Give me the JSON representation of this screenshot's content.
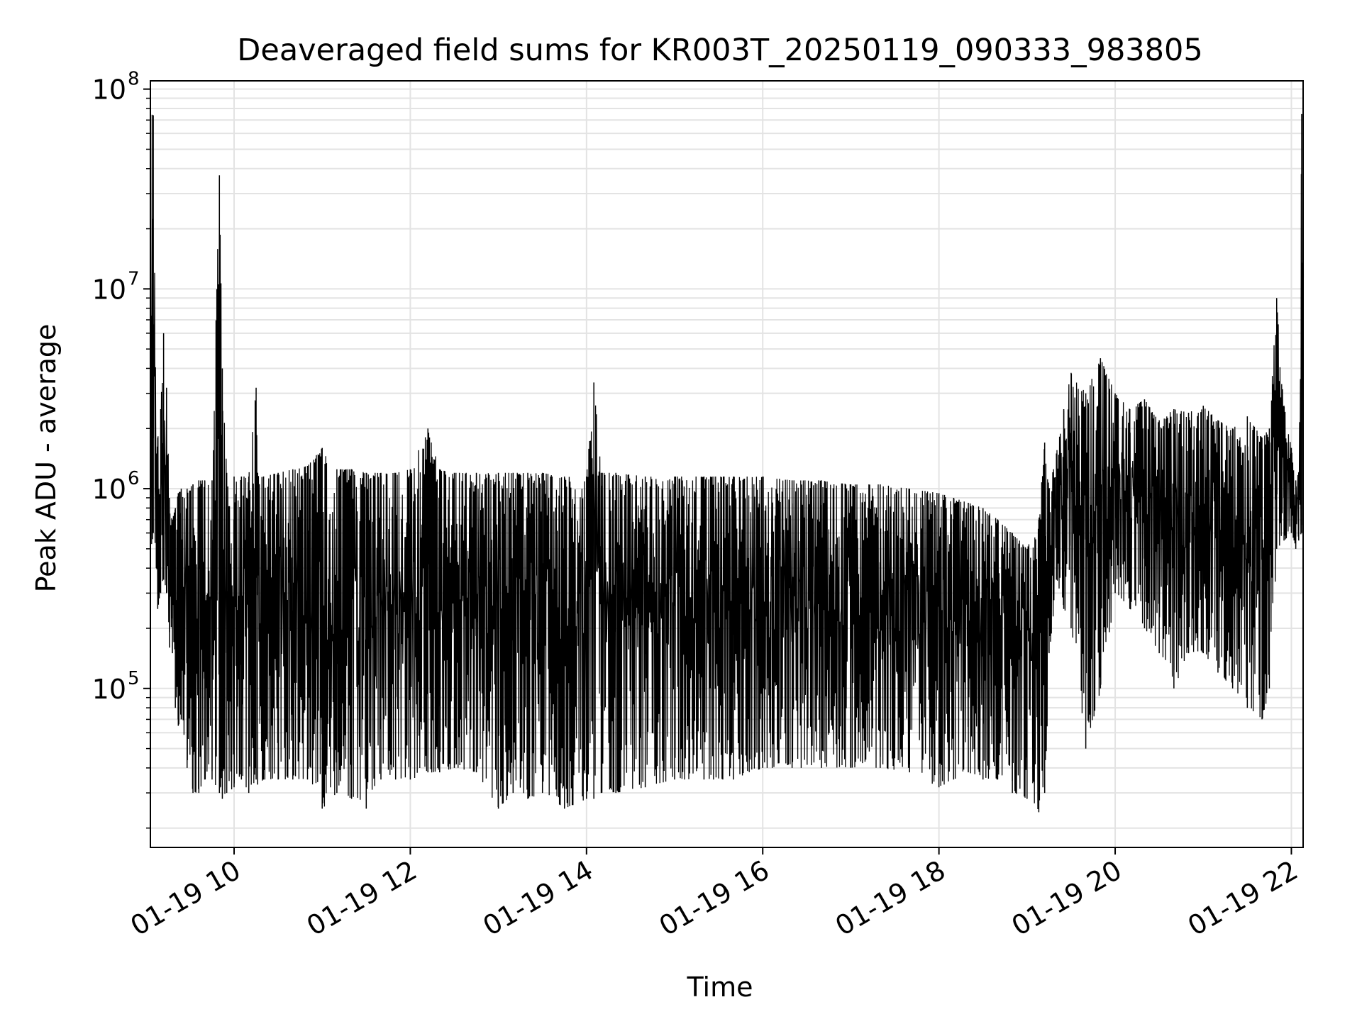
{
  "chart_data": {
    "type": "line",
    "title": "Deaveraged field sums for KR003T_20250119_090333_983805",
    "xlabel": "Time",
    "ylabel": "Peak ADU - average",
    "x_axis": {
      "kind": "datetime",
      "range": [
        "2025-01-19T09:03",
        "2025-01-19T22:08"
      ],
      "ticks": [
        {
          "value": "2025-01-19T10:00",
          "label": "01-19 10"
        },
        {
          "value": "2025-01-19T12:00",
          "label": "01-19 12"
        },
        {
          "value": "2025-01-19T14:00",
          "label": "01-19 14"
        },
        {
          "value": "2025-01-19T16:00",
          "label": "01-19 16"
        },
        {
          "value": "2025-01-19T18:00",
          "label": "01-19 18"
        },
        {
          "value": "2025-01-19T20:00",
          "label": "01-19 20"
        },
        {
          "value": "2025-01-19T22:00",
          "label": "01-19 22"
        }
      ]
    },
    "y_axis": {
      "scale": "log",
      "range": [
        16000,
        110000000
      ],
      "ticks": [
        {
          "value": 100000,
          "base": "10",
          "exp": "5"
        },
        {
          "value": 1000000,
          "base": "10",
          "exp": "6"
        },
        {
          "value": 10000000,
          "base": "10",
          "exp": "7"
        },
        {
          "value": 100000000,
          "base": "10",
          "exp": "8"
        }
      ]
    },
    "grid": true,
    "legend": "none",
    "line_color": "#000000",
    "series": [
      {
        "x": [
          "2025-01-19T09:03",
          "2025-01-19T09:05",
          "2025-01-19T09:07",
          "2025-01-19T09:08",
          "2025-01-19T09:10",
          "2025-01-19T09:12",
          "2025-01-19T09:14",
          "2025-01-19T09:16",
          "2025-01-19T09:18",
          "2025-01-19T09:20",
          "2025-01-19T09:22",
          "2025-01-19T09:24",
          "2025-01-19T09:28",
          "2025-01-19T09:32",
          "2025-01-19T09:36",
          "2025-01-19T09:40",
          "2025-01-19T09:45",
          "2025-01-19T09:50",
          "2025-01-19T09:52",
          "2025-01-19T09:55",
          "2025-01-19T10:00",
          "2025-01-19T10:05",
          "2025-01-19T10:10",
          "2025-01-19T10:15",
          "2025-01-19T10:16",
          "2025-01-19T10:20",
          "2025-01-19T10:30",
          "2025-01-19T10:40",
          "2025-01-19T10:50",
          "2025-01-19T11:00",
          "2025-01-19T11:10",
          "2025-01-19T11:20",
          "2025-01-19T11:30",
          "2025-01-19T11:40",
          "2025-01-19T11:50",
          "2025-01-19T12:00",
          "2025-01-19T12:12",
          "2025-01-19T12:20",
          "2025-01-19T12:30",
          "2025-01-19T12:45",
          "2025-01-19T13:00",
          "2025-01-19T13:10",
          "2025-01-19T13:20",
          "2025-01-19T13:30",
          "2025-01-19T13:45",
          "2025-01-19T14:00",
          "2025-01-19T14:05",
          "2025-01-19T14:10",
          "2025-01-19T14:20",
          "2025-01-19T14:40",
          "2025-01-19T15:00",
          "2025-01-19T15:20",
          "2025-01-19T15:40",
          "2025-01-19T16:00",
          "2025-01-19T16:20",
          "2025-01-19T16:40",
          "2025-01-19T17:00",
          "2025-01-19T17:20",
          "2025-01-19T17:40",
          "2025-01-19T18:00",
          "2025-01-19T18:10",
          "2025-01-19T18:20",
          "2025-01-19T18:30",
          "2025-01-19T18:40",
          "2025-01-19T18:50",
          "2025-01-19T19:00",
          "2025-01-19T19:08",
          "2025-01-19T19:12",
          "2025-01-19T19:15",
          "2025-01-19T19:20",
          "2025-01-19T19:25",
          "2025-01-19T19:30",
          "2025-01-19T19:40",
          "2025-01-19T19:50",
          "2025-01-19T20:00",
          "2025-01-19T20:10",
          "2025-01-19T20:20",
          "2025-01-19T20:30",
          "2025-01-19T20:40",
          "2025-01-19T20:50",
          "2025-01-19T21:00",
          "2025-01-19T21:10",
          "2025-01-19T21:20",
          "2025-01-19T21:30",
          "2025-01-19T21:40",
          "2025-01-19T21:45",
          "2025-01-19T21:50",
          "2025-01-19T21:55",
          "2025-01-19T22:00",
          "2025-01-19T22:03",
          "2025-01-19T22:05",
          "2025-01-19T22:07",
          "2025-01-19T22:08"
        ],
        "max": [
          75000000,
          74000000,
          1500000,
          1800000,
          2500000,
          6000000,
          3200000,
          900000,
          700000,
          800000,
          950000,
          1000000,
          1000000,
          1050000,
          1100000,
          1100000,
          1100000,
          37000000,
          4000000,
          1200000,
          1150000,
          1150000,
          1150000,
          3200000,
          1200000,
          1150000,
          1200000,
          1250000,
          1300000,
          1600000,
          1250000,
          1250000,
          1200000,
          1200000,
          1200000,
          1250000,
          2000000,
          1250000,
          1200000,
          1200000,
          1200000,
          1200000,
          1200000,
          1200000,
          1150000,
          1150000,
          3400000,
          1200000,
          1200000,
          1150000,
          1150000,
          1150000,
          1150000,
          1150000,
          1100000,
          1100000,
          1050000,
          1050000,
          1000000,
          950000,
          900000,
          850000,
          800000,
          700000,
          600000,
          500000,
          700000,
          1700000,
          1000000,
          1500000,
          2500000,
          3800000,
          3000000,
          4500000,
          3000000,
          2500000,
          2800000,
          2200000,
          2500000,
          2400000,
          2600000,
          2200000,
          2000000,
          2300000,
          1800000,
          2000000,
          9000000,
          2600000,
          1600000,
          1100000,
          1200000,
          75000000,
          65000000
        ],
        "min": [
          500000,
          600000,
          400000,
          250000,
          300000,
          350000,
          300000,
          160000,
          150000,
          80000,
          65000,
          70000,
          40000,
          30000,
          30000,
          35000,
          35000,
          30000,
          28000,
          30000,
          32000,
          35000,
          30000,
          35000,
          33000,
          35000,
          35000,
          35000,
          35000,
          25000,
          30000,
          28000,
          25000,
          35000,
          35000,
          35000,
          38000,
          38000,
          40000,
          38000,
          25000,
          30000,
          28000,
          30000,
          25000,
          28000,
          28000,
          30000,
          30000,
          32000,
          35000,
          35000,
          35000,
          40000,
          40000,
          40000,
          40000,
          40000,
          38000,
          32000,
          35000,
          38000,
          35000,
          35000,
          30000,
          28000,
          24000,
          30000,
          150000,
          350000,
          250000,
          200000,
          50000,
          100000,
          300000,
          250000,
          200000,
          150000,
          100000,
          150000,
          150000,
          120000,
          100000,
          80000,
          70000,
          100000,
          500000,
          550000,
          600000,
          500000,
          550000,
          600000,
          2000000
        ]
      }
    ]
  }
}
